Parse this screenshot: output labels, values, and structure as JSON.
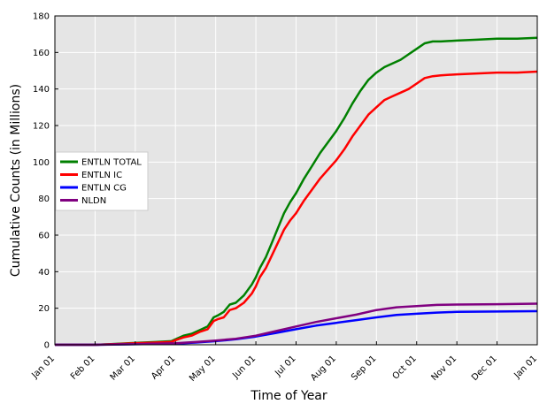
{
  "chart_data": {
    "type": "line",
    "xlabel": "Time of Year",
    "ylabel": "Cumulative Counts (in Millions)",
    "ylim": [
      0,
      180
    ],
    "yticks": [
      0,
      20,
      40,
      60,
      80,
      100,
      120,
      140,
      160,
      180
    ],
    "xlim": [
      "Jan 01",
      "Jan 01 (next year)"
    ],
    "xticks": [
      {
        "label": "Jan 01",
        "month": 0
      },
      {
        "label": "Feb 01",
        "month": 1
      },
      {
        "label": "Mar 01",
        "month": 2
      },
      {
        "label": "Apr 01",
        "month": 3
      },
      {
        "label": "May 01",
        "month": 4
      },
      {
        "label": "Jun 01",
        "month": 5
      },
      {
        "label": "Jul 01",
        "month": 6
      },
      {
        "label": "Aug 01",
        "month": 7
      },
      {
        "label": "Sep 01",
        "month": 8
      },
      {
        "label": "Oct 01",
        "month": 9
      },
      {
        "label": "Nov 01",
        "month": 10
      },
      {
        "label": "Dec 01",
        "month": 11
      },
      {
        "label": "Jan 01",
        "month": 12
      }
    ],
    "grid": true,
    "background": "#e5e5e5",
    "legend_placement": "center-left",
    "series": [
      {
        "name": "ENTLN TOTAL",
        "color": "#008000",
        "x": [
          0,
          1.0,
          1.5,
          2.0,
          2.5,
          2.9,
          3.0,
          3.2,
          3.4,
          3.6,
          3.8,
          3.95,
          4.05,
          4.2,
          4.35,
          4.5,
          4.7,
          4.9,
          5.0,
          5.1,
          5.25,
          5.4,
          5.55,
          5.7,
          5.85,
          6.0,
          6.2,
          6.4,
          6.6,
          6.8,
          7.0,
          7.2,
          7.4,
          7.6,
          7.8,
          8.0,
          8.2,
          8.4,
          8.6,
          8.8,
          9.0,
          9.2,
          9.4,
          9.6,
          10.0,
          10.5,
          11.0,
          11.5,
          12.0
        ],
        "y": [
          0,
          0,
          0.5,
          1,
          1.5,
          2,
          3,
          5,
          6,
          8,
          10,
          15,
          16,
          18,
          22,
          23,
          27,
          33,
          37,
          42,
          48,
          56,
          64,
          72,
          78,
          83,
          91,
          98,
          105,
          111,
          117,
          124,
          132,
          139,
          145,
          149,
          152,
          154,
          156,
          159,
          162,
          165,
          166,
          166,
          166.5,
          167,
          167.5,
          167.5,
          168
        ]
      },
      {
        "name": "ENTLN IC",
        "color": "#ff0000",
        "x": [
          0,
          1.0,
          1.5,
          2.0,
          2.5,
          2.9,
          3.0,
          3.2,
          3.4,
          3.6,
          3.8,
          3.95,
          4.05,
          4.2,
          4.35,
          4.5,
          4.7,
          4.9,
          5.0,
          5.1,
          5.25,
          5.4,
          5.55,
          5.7,
          5.85,
          6.0,
          6.2,
          6.4,
          6.6,
          6.8,
          7.0,
          7.2,
          7.4,
          7.6,
          7.8,
          8.0,
          8.2,
          8.4,
          8.6,
          8.8,
          9.0,
          9.2,
          9.4,
          9.6,
          10.0,
          10.5,
          11.0,
          11.5,
          12.0
        ],
        "y": [
          0,
          0,
          0.4,
          0.8,
          1.2,
          1.6,
          2.5,
          4,
          5,
          7,
          8.5,
          13,
          14,
          15,
          19,
          20,
          23,
          28,
          32,
          37,
          42,
          49,
          56,
          63,
          68,
          72,
          79,
          85,
          91,
          96,
          101,
          107,
          114,
          120,
          126,
          130,
          134,
          136,
          138,
          140,
          143,
          146,
          147,
          147.5,
          148,
          148.5,
          149,
          149,
          149.5
        ]
      },
      {
        "name": "ENTLN CG",
        "color": "#0000ff",
        "x": [
          0,
          1.0,
          2.0,
          3.0,
          3.5,
          4.0,
          4.5,
          5.0,
          5.5,
          6.0,
          6.5,
          7.0,
          7.5,
          8.0,
          8.5,
          9.0,
          9.5,
          10.0,
          11.0,
          12.0
        ],
        "y": [
          0,
          0,
          0.3,
          0.6,
          1.2,
          2,
          3,
          4.5,
          6.5,
          8.5,
          10.5,
          12,
          13.5,
          15,
          16.3,
          17,
          17.6,
          18,
          18.2,
          18.4
        ]
      },
      {
        "name": "NLDN",
        "color": "#800080",
        "x": [
          0,
          1.0,
          2.0,
          3.0,
          3.5,
          4.0,
          4.5,
          5.0,
          5.5,
          6.0,
          6.5,
          7.0,
          7.5,
          8.0,
          8.5,
          9.0,
          9.5,
          10.0,
          11.0,
          12.0
        ],
        "y": [
          0,
          0,
          0.4,
          0.8,
          1.5,
          2.3,
          3.3,
          5,
          7.5,
          10,
          12.5,
          14.5,
          16.5,
          19,
          20.5,
          21.2,
          21.8,
          22,
          22.2,
          22.5
        ]
      }
    ]
  }
}
